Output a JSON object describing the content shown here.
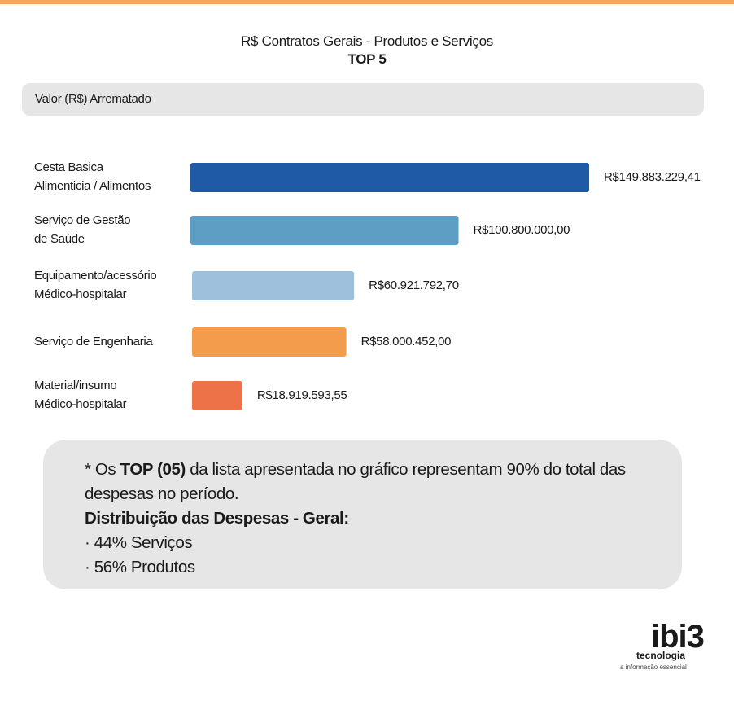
{
  "header": {
    "title_line1": "R$ Contratos Gerais - Produtos e Serviços",
    "title_line2": "TOP 5"
  },
  "legend": {
    "label": "Valor (R$) Arrematado"
  },
  "chart_data": {
    "type": "bar",
    "orientation": "horizontal",
    "title": "R$ Contratos Gerais - Produtos e Serviços",
    "subtitle": "TOP 5",
    "legend": [
      "Valor (R$) Arrematado"
    ],
    "categories": [
      [
        "Cesta Basica",
        "Alimenticia / Alimentos"
      ],
      [
        "Serviço de Gestão",
        "de Saúde"
      ],
      [
        "Equipamento/acessório",
        "Médico-hospitalar"
      ],
      [
        "Serviço de Engenharia"
      ],
      [
        "Material/insumo",
        "Médico-hospitalar"
      ]
    ],
    "values": [
      149883229.41,
      100800000.0,
      60921792.7,
      58000452.0,
      18919593.55
    ],
    "value_labels": [
      "R$149.883.229,41",
      "R$100.800.000,00",
      "R$60.921.792,70",
      "R$58.000.452,00",
      "R$18.919.593,55"
    ],
    "colors": [
      "#1f5aa6",
      "#5e9dc4",
      "#9ec0dc",
      "#f39c4c",
      "#ee7247"
    ],
    "grid": false
  },
  "note": {
    "line1_prefix": "* Os ",
    "line1_bold": "TOP (05)",
    "line1_suffix": " da lista apresentada no gráfico representam 90% do total das",
    "line2": "despesas no período.",
    "line3_bold": "Distribuição das Despesas - Geral:",
    "bullet1": "· 44% Serviços",
    "bullet2": "· 56% Produtos"
  },
  "logo": {
    "brand_prefix": "ibi",
    "brand_suffix": "3",
    "sub": "tecnologia",
    "tagline": "a informação essencial"
  }
}
